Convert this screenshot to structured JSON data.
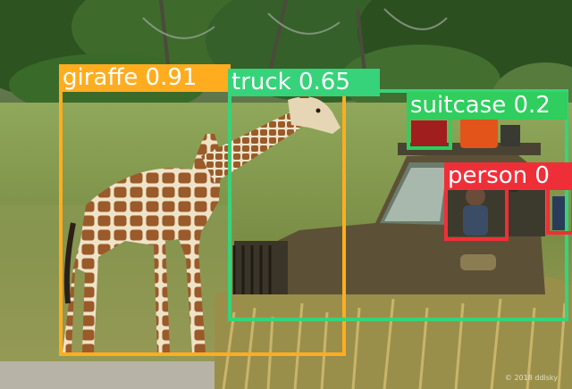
{
  "image": {
    "watermark": "© 2018 ddlsky"
  },
  "detections": [
    {
      "id": "giraffe",
      "label": "giraffe",
      "score": "0.91",
      "color": "#ffad1f"
    },
    {
      "id": "truck",
      "label": "truck",
      "score": "0.65",
      "color": "#37d37a"
    },
    {
      "id": "suitcase",
      "label": "suitcase",
      "score": "0.2",
      "color": "#2fce5e"
    },
    {
      "id": "person-main",
      "label": "person",
      "score": "0",
      "color": "#ef2f38"
    },
    {
      "id": "person-edge",
      "label": "",
      "score": "",
      "color": "#ef2f38"
    }
  ]
}
